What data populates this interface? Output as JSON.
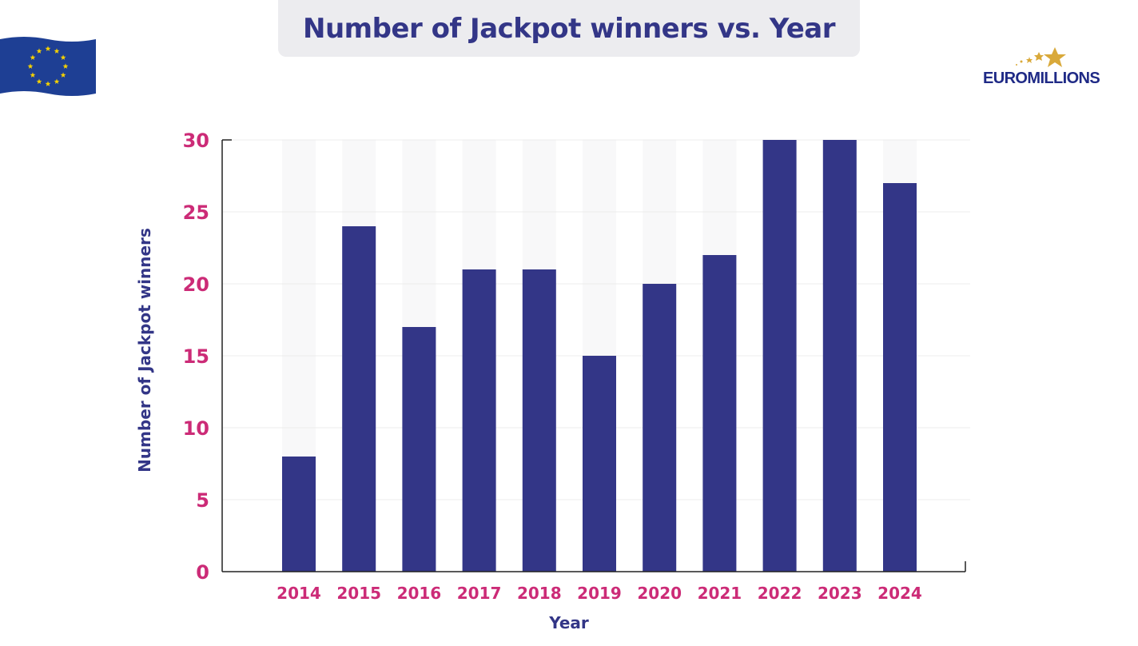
{
  "chart_data": {
    "type": "bar",
    "title": "Number of Jackpot winners vs. Year",
    "xlabel": "Year",
    "ylabel": "Number of Jackpot winners",
    "categories": [
      "2014",
      "2015",
      "2016",
      "2017",
      "2018",
      "2019",
      "2020",
      "2021",
      "2022",
      "2023",
      "2024"
    ],
    "values": [
      8,
      24,
      17,
      21,
      21,
      15,
      20,
      22,
      30,
      30,
      27
    ],
    "ylim": [
      0,
      30
    ],
    "yticks": [
      0,
      5,
      10,
      15,
      20,
      25,
      30
    ],
    "grid": true,
    "colors": {
      "bar": "#333687",
      "tick_label": "#cc2b77",
      "title": "#333687"
    }
  },
  "branding": {
    "logo_text": "EUROMILLIONS",
    "flag_icon": "eu-flag-icon"
  }
}
